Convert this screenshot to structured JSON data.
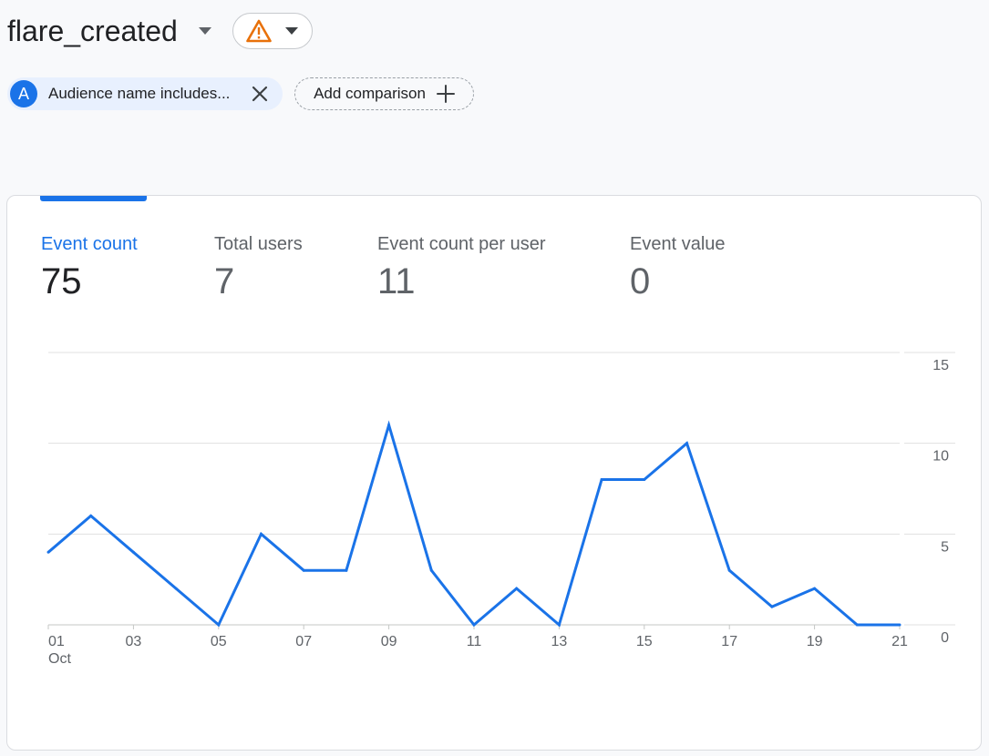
{
  "header": {
    "title": "flare_created",
    "title_dropdown_icon": "caret-down-icon",
    "warning_icon": "warning-triangle-icon",
    "warning_color": "#e8710a"
  },
  "comparisons": {
    "audience_chip": {
      "avatar_letter": "A",
      "label": "Audience name includes...",
      "close_icon": "close-icon"
    },
    "add_comparison": {
      "label": "Add comparison",
      "icon": "plus-icon"
    }
  },
  "metrics": [
    {
      "label": "Event count",
      "value": "75",
      "active": true
    },
    {
      "label": "Total users",
      "value": "7",
      "active": false
    },
    {
      "label": "Event count per user",
      "value": "11",
      "active": false
    },
    {
      "label": "Event value",
      "value": "0",
      "active": false
    }
  ],
  "colors": {
    "accent": "#1a73e8",
    "line": "#1a73e8",
    "grid": "#e0e0e0"
  },
  "chart_data": {
    "type": "line",
    "title": "",
    "x": [
      "01",
      "02",
      "03",
      "04",
      "05",
      "06",
      "07",
      "08",
      "09",
      "10",
      "11",
      "12",
      "13",
      "14",
      "15",
      "16",
      "17",
      "18",
      "19",
      "20",
      "21"
    ],
    "x_tick_labels": [
      "01",
      "03",
      "05",
      "07",
      "09",
      "11",
      "13",
      "15",
      "17",
      "19",
      "21"
    ],
    "x_sublabel": "Oct",
    "series": [
      {
        "values": [
          4,
          6,
          4,
          2,
          0,
          5,
          3,
          3,
          11,
          3,
          0,
          2,
          0,
          8,
          8,
          10,
          3,
          1,
          2,
          0,
          0
        ]
      }
    ],
    "y_ticks": [
      0,
      5,
      10,
      15
    ],
    "ylim": [
      0,
      15
    ],
    "y_axis_position": "right",
    "grid": true
  }
}
